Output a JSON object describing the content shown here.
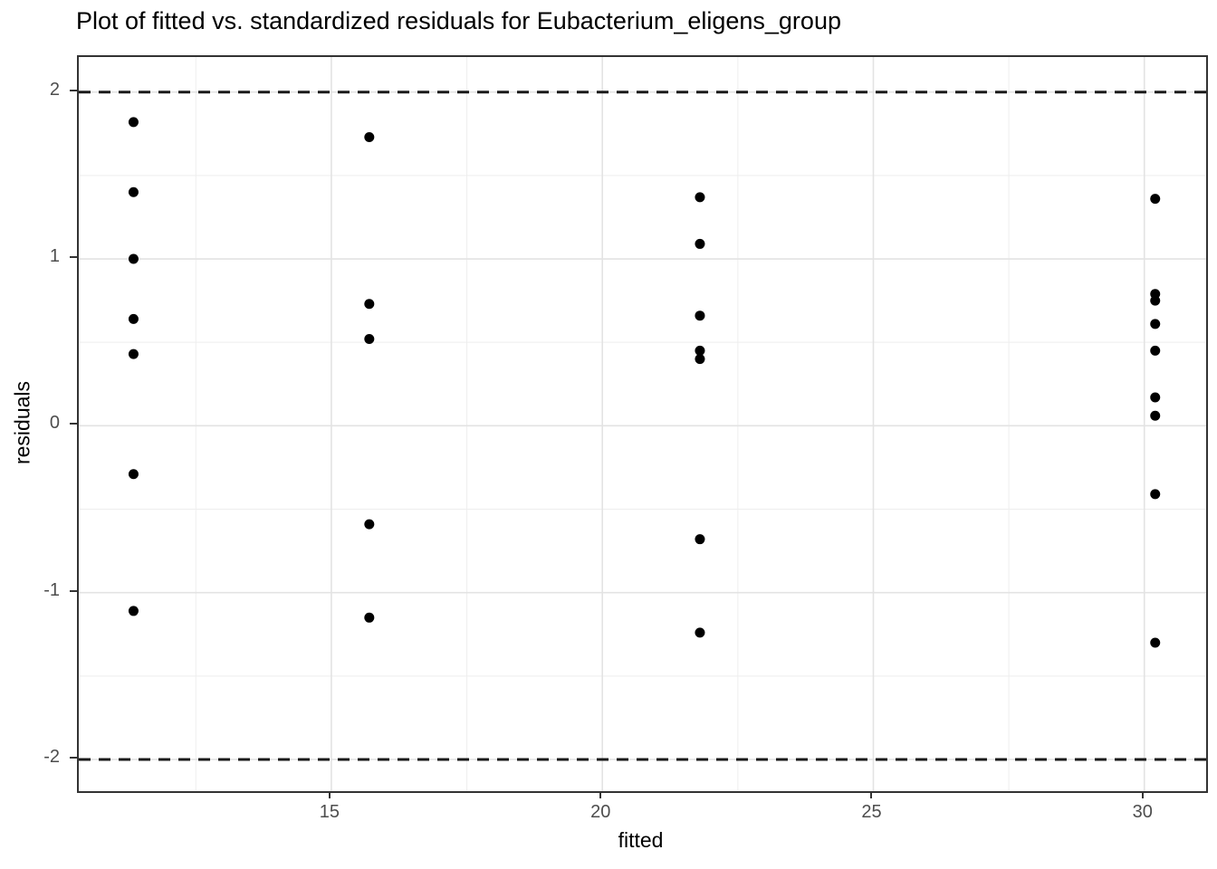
{
  "chart_data": {
    "type": "scatter",
    "title": "Plot of fitted vs. standardized residuals for Eubacterium_eligens_group",
    "xlabel": "fitted",
    "ylabel": "residuals",
    "xlim": [
      10.34,
      31.14
    ],
    "ylim": [
      -2.19,
      2.21
    ],
    "x_ticks": [
      {
        "value": 15,
        "label": "15"
      },
      {
        "value": 20,
        "label": "20"
      },
      {
        "value": 25,
        "label": "25"
      },
      {
        "value": 30,
        "label": "30"
      }
    ],
    "y_ticks": [
      {
        "value": 2,
        "label": "2"
      },
      {
        "value": 1,
        "label": "1"
      },
      {
        "value": 0,
        "label": "0"
      },
      {
        "value": -1,
        "label": "-1"
      },
      {
        "value": -2,
        "label": "-2"
      }
    ],
    "x_minor_ticks": [
      12.5,
      17.5,
      22.5,
      27.5
    ],
    "y_minor_ticks": [
      1.5,
      0.5,
      -0.5,
      -1.5
    ],
    "grid": true,
    "legend": false,
    "reference_lines": [
      {
        "y": 2,
        "style": "dashed"
      },
      {
        "y": -2,
        "style": "dashed"
      }
    ],
    "points": [
      {
        "x": 11.35,
        "y": 1.82
      },
      {
        "x": 11.35,
        "y": 1.4
      },
      {
        "x": 11.35,
        "y": 1.0
      },
      {
        "x": 11.35,
        "y": 0.64
      },
      {
        "x": 11.35,
        "y": 0.43
      },
      {
        "x": 11.35,
        "y": -0.29
      },
      {
        "x": 11.35,
        "y": -1.11
      },
      {
        "x": 15.7,
        "y": 1.73
      },
      {
        "x": 15.7,
        "y": 0.73
      },
      {
        "x": 15.7,
        "y": 0.52
      },
      {
        "x": 15.7,
        "y": -0.59
      },
      {
        "x": 15.7,
        "y": -1.15
      },
      {
        "x": 21.8,
        "y": 1.37
      },
      {
        "x": 21.8,
        "y": 1.09
      },
      {
        "x": 21.8,
        "y": 0.66
      },
      {
        "x": 21.8,
        "y": 0.45
      },
      {
        "x": 21.8,
        "y": 0.4
      },
      {
        "x": 21.8,
        "y": -0.68
      },
      {
        "x": 21.8,
        "y": -1.24
      },
      {
        "x": 30.2,
        "y": 1.36
      },
      {
        "x": 30.2,
        "y": 0.79
      },
      {
        "x": 30.2,
        "y": 0.75
      },
      {
        "x": 30.2,
        "y": 0.61
      },
      {
        "x": 30.2,
        "y": 0.45
      },
      {
        "x": 30.2,
        "y": 0.17
      },
      {
        "x": 30.2,
        "y": 0.06
      },
      {
        "x": 30.2,
        "y": -0.41
      },
      {
        "x": 30.2,
        "y": -1.3
      }
    ],
    "colors": {
      "point": "#000000",
      "reference_line": "#1a1a1a",
      "grid_major": "#e3e3e3",
      "grid_minor": "#eeeeee",
      "panel_border": "#333333",
      "tick": "#333333",
      "tick_label": "#4d4d4d",
      "title_text": "#000000"
    }
  }
}
